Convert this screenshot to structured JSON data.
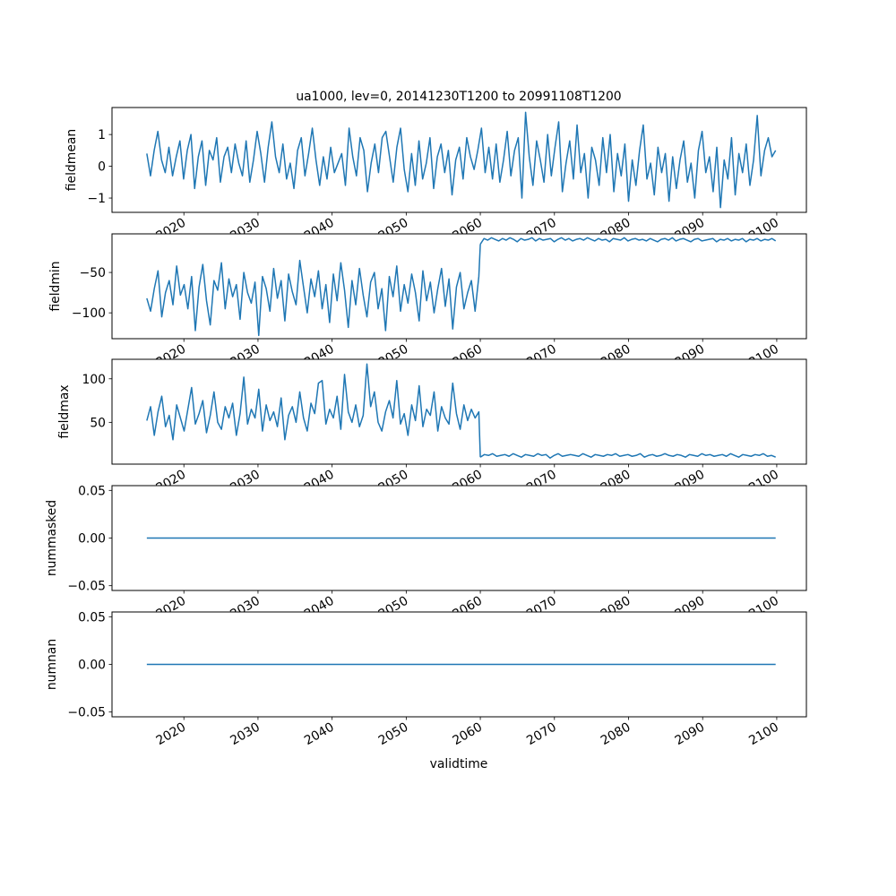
{
  "chart_data": {
    "type": "line",
    "title": "ua1000, lev=0, 20141230T1200 to 20991108T1200",
    "xlabel": "validtime",
    "x_ticks": [
      2020,
      2030,
      2040,
      2050,
      2060,
      2070,
      2080,
      2090,
      2100
    ],
    "x_tick_labels": [
      "2020",
      "2030",
      "2040",
      "2050",
      "2060",
      "2070",
      "2080",
      "2090",
      "2100"
    ],
    "xlim": [
      2010.3,
      2104.0
    ],
    "line_color": "#1f77b4",
    "panels": [
      {
        "ylabel": "fieldmean",
        "ylim": [
          -1.45,
          1.85
        ],
        "y_ticks": [
          -1,
          0,
          1
        ],
        "y_tick_labels": [
          "−1",
          "0",
          "1"
        ],
        "segments": [
          {
            "start": 2015.0,
            "end": 2099.85,
            "values": [
              0.4,
              -0.3,
              0.5,
              1.1,
              0.2,
              -0.2,
              0.6,
              -0.3,
              0.3,
              0.8,
              -0.4,
              0.5,
              1.0,
              -0.7,
              0.3,
              0.8,
              -0.6,
              0.5,
              0.2,
              0.9,
              -0.5,
              0.3,
              0.6,
              -0.2,
              0.7,
              0.1,
              -0.3,
              0.8,
              -0.5,
              0.2,
              1.1,
              0.4,
              -0.5,
              0.6,
              1.4,
              0.3,
              -0.2,
              0.7,
              -0.4,
              0.1,
              -0.7,
              0.5,
              0.9,
              -0.3,
              0.4,
              1.2,
              0.2,
              -0.6,
              0.3,
              -0.4,
              0.6,
              -0.2,
              0.1,
              0.4,
              -0.6,
              1.2,
              0.3,
              -0.3,
              0.9,
              0.5,
              -0.8,
              0.1,
              0.7,
              -0.2,
              0.9,
              1.1,
              0.3,
              -0.5,
              0.6,
              1.2,
              -0.1,
              -0.8,
              0.4,
              -0.6,
              0.8,
              -0.4,
              0.1,
              0.9,
              -0.7,
              0.3,
              0.7,
              -0.2,
              0.5,
              -0.9,
              0.2,
              0.6,
              -0.4,
              0.9,
              0.3,
              -0.1,
              0.5,
              1.2,
              -0.2,
              0.6,
              -0.4,
              0.7,
              -0.5,
              0.2,
              1.1,
              -0.3,
              0.5,
              0.9,
              -1.0,
              1.7,
              0.3,
              -0.6,
              0.8,
              0.2,
              -0.5,
              1.0,
              -0.3,
              0.6,
              1.4,
              -0.8,
              0.1,
              0.8,
              -0.4,
              1.3,
              -0.2,
              0.4,
              -1.0,
              0.6,
              0.2,
              -0.6,
              0.9,
              -0.2,
              1.0,
              -0.8,
              0.4,
              -0.3,
              0.7,
              -1.1,
              0.2,
              -0.6,
              0.5,
              1.3,
              -0.4,
              0.1,
              -0.9,
              0.6,
              -0.2,
              0.4,
              -1.1,
              0.3,
              -0.7,
              0.2,
              0.8,
              -0.5,
              0.1,
              -1.0,
              0.5,
              1.1,
              -0.2,
              0.3,
              -0.8,
              0.6,
              -1.3,
              0.2,
              -0.4,
              0.9,
              -0.9,
              0.4,
              -0.2,
              0.7,
              -0.6,
              0.2,
              1.6,
              -0.3,
              0.5,
              0.9,
              0.3,
              0.5
            ]
          }
        ]
      },
      {
        "ylabel": "fieldmin",
        "ylim": [
          -132,
          -2.2
        ],
        "y_ticks": [
          -100,
          -50
        ],
        "y_tick_labels": [
          "−100",
          "−50"
        ],
        "segments": [
          {
            "start": 2015.0,
            "end": 2059.8,
            "values": [
              -82,
              -98,
              -70,
              -48,
              -105,
              -75,
              -60,
              -90,
              -42,
              -78,
              -65,
              -95,
              -55,
              -122,
              -68,
              -40,
              -85,
              -115,
              -60,
              -72,
              -38,
              -95,
              -58,
              -80,
              -65,
              -108,
              -50,
              -75,
              -88,
              -62,
              -128,
              -55,
              -70,
              -98,
              -45,
              -82,
              -60,
              -110,
              -52,
              -74,
              -90,
              -35,
              -68,
              -100,
              -58,
              -80,
              -48,
              -95,
              -65,
              -112,
              -52,
              -85,
              -38,
              -72,
              -118,
              -60,
              -90,
              -45,
              -78,
              -105,
              -62,
              -50,
              -95,
              -70,
              -122,
              -55,
              -80,
              -42,
              -98,
              -65,
              -88,
              -52,
              -75,
              -110,
              -48,
              -85,
              -62,
              -100,
              -70,
              -45,
              -92,
              -58,
              -120,
              -68,
              -50,
              -95,
              -75,
              -60,
              -98,
              -55
            ]
          },
          {
            "start": 2060.0,
            "end": 2099.85,
            "values": [
              -15,
              -8,
              -10,
              -7,
              -9,
              -11,
              -8,
              -10,
              -7,
              -9,
              -12,
              -8,
              -10,
              -9,
              -7,
              -11,
              -8,
              -10,
              -9,
              -8,
              -12,
              -9,
              -7,
              -10,
              -8,
              -11,
              -9,
              -8,
              -10,
              -7,
              -9,
              -11,
              -8,
              -10,
              -9,
              -12,
              -8,
              -9,
              -10,
              -7,
              -11,
              -9,
              -8,
              -10,
              -9,
              -11,
              -8,
              -10,
              -12,
              -9,
              -8,
              -10,
              -7,
              -11,
              -9,
              -8,
              -10,
              -12,
              -9,
              -8,
              -11,
              -10,
              -9,
              -8,
              -12,
              -9,
              -10,
              -8,
              -11,
              -9,
              -10,
              -8,
              -12,
              -9,
              -10,
              -8,
              -11,
              -9,
              -10,
              -8,
              -11
            ]
          }
        ]
      },
      {
        "ylabel": "fieldmax",
        "ylim": [
          2,
          122.4
        ],
        "y_ticks": [
          50,
          100
        ],
        "y_tick_labels": [
          "50",
          "100"
        ],
        "segments": [
          {
            "start": 2015.0,
            "end": 2059.8,
            "values": [
              52,
              68,
              35,
              62,
              80,
              45,
              58,
              30,
              70,
              55,
              40,
              65,
              90,
              48,
              60,
              75,
              38,
              58,
              85,
              50,
              42,
              68,
              55,
              72,
              35,
              60,
              102,
              48,
              65,
              55,
              88,
              40,
              70,
              52,
              62,
              45,
              78,
              30,
              58,
              68,
              50,
              85,
              55,
              40,
              72,
              60,
              95,
              98,
              48,
              65,
              55,
              80,
              42,
              105,
              62,
              50,
              70,
              45,
              58,
              117,
              68,
              85,
              50,
              40,
              62,
              75,
              55,
              98,
              48,
              60,
              35,
              70,
              52,
              92,
              45,
              65,
              58,
              85,
              40,
              68,
              55,
              48,
              95,
              60,
              42,
              70,
              52,
              65,
              55,
              62
            ]
          },
          {
            "start": 2060.0,
            "end": 2099.85,
            "values": [
              10,
              13,
              12,
              14,
              11,
              12,
              13,
              11,
              14,
              12,
              10,
              13,
              12,
              11,
              14,
              12,
              13,
              9,
              12,
              14,
              11,
              12,
              13,
              12,
              11,
              14,
              12,
              10,
              13,
              12,
              11,
              13,
              12,
              14,
              11,
              12,
              13,
              11,
              12,
              14,
              10,
              12,
              13,
              11,
              12,
              14,
              12,
              11,
              13,
              12,
              10,
              13,
              12,
              11,
              14,
              12,
              13,
              11,
              12,
              13,
              11,
              14,
              12,
              10,
              13,
              12,
              11,
              13,
              12,
              14,
              11,
              12,
              10
            ]
          }
        ]
      },
      {
        "ylabel": "nummasked",
        "ylim": [
          -0.055,
          0.055
        ],
        "y_ticks": [
          -0.05,
          0,
          0.05
        ],
        "y_tick_labels": [
          "−0.05",
          "0.00",
          "0.05"
        ],
        "segments": [
          {
            "start": 2015.0,
            "end": 2099.85,
            "values": [
              0,
              0
            ]
          }
        ]
      },
      {
        "ylabel": "numnan",
        "ylim": [
          -0.055,
          0.055
        ],
        "y_ticks": [
          -0.05,
          0,
          0.05
        ],
        "y_tick_labels": [
          "−0.05",
          "0.00",
          "0.05"
        ],
        "segments": [
          {
            "start": 2015.0,
            "end": 2099.85,
            "values": [
              0,
              0
            ]
          }
        ]
      }
    ]
  }
}
